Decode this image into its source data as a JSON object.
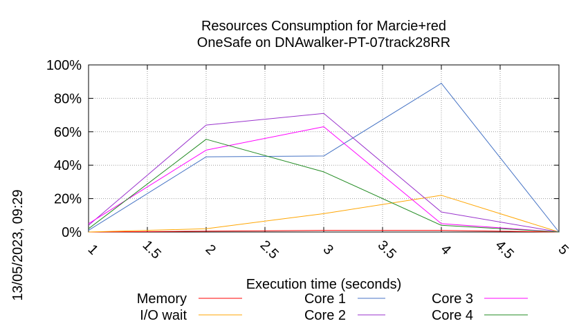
{
  "chart_data": {
    "type": "line",
    "title": "Resources Consumption for Marcie+red",
    "subtitle": "OneSafe on DNAwalker-PT-07track28RR",
    "xlabel": "Execution time (seconds)",
    "ylabel": "",
    "xlim": [
      1,
      5
    ],
    "ylim": [
      0,
      100
    ],
    "x_ticks": [
      "1",
      "1.5",
      "2",
      "2.5",
      "3",
      "3.5",
      "4",
      "4.5",
      "5"
    ],
    "y_ticks": [
      "0%",
      "20%",
      "40%",
      "60%",
      "80%",
      "100%"
    ],
    "grid": true,
    "legend_position": "bottom",
    "timestamp": "13/05/2023, 09:29",
    "x": [
      1,
      2,
      3,
      4,
      5
    ],
    "series": [
      {
        "name": "Memory",
        "color": "#ff0000",
        "values": [
          0,
          0.5,
          1,
          1,
          0
        ]
      },
      {
        "name": "I/O wait",
        "color": "#ffa500",
        "values": [
          0,
          2,
          11,
          22,
          0
        ]
      },
      {
        "name": "Core 1",
        "color": "#4472c4",
        "values": [
          1,
          45,
          45.5,
          89,
          0
        ]
      },
      {
        "name": "Core 2",
        "color": "#9932cc",
        "values": [
          4,
          64,
          71,
          12,
          0
        ]
      },
      {
        "name": "Core 3",
        "color": "#ff00ff",
        "values": [
          5,
          49,
          63,
          5,
          0
        ]
      },
      {
        "name": "Core 4",
        "color": "#228b22",
        "values": [
          2,
          55.5,
          36,
          4,
          0
        ]
      }
    ]
  }
}
